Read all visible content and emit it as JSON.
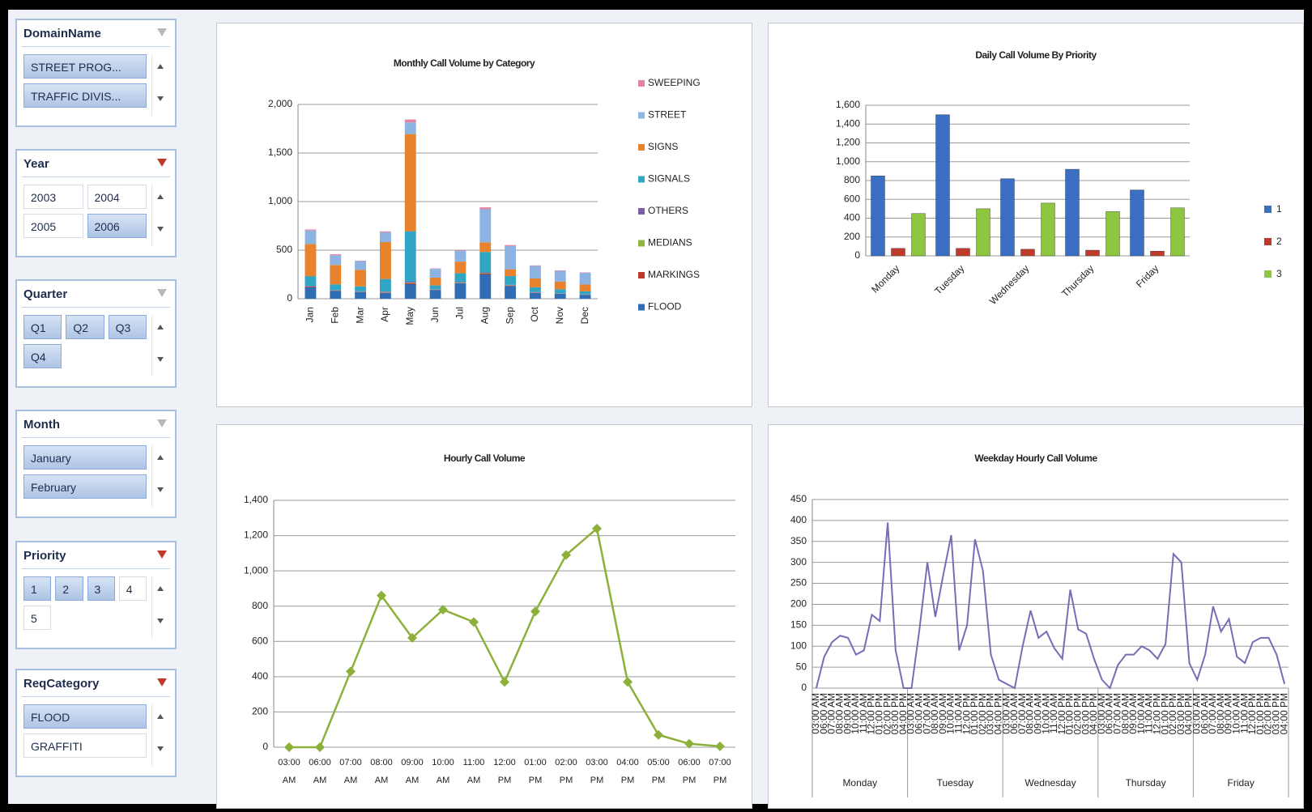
{
  "slicers": [
    {
      "title": "DomainName",
      "filtered": false,
      "items": [
        {
          "label": "STREET PROG...",
          "selected": true
        },
        {
          "label": "TRAFFIC DIVIS...",
          "selected": true
        }
      ]
    },
    {
      "title": "Year",
      "filtered": true,
      "items": [
        {
          "label": "2003",
          "selected": false
        },
        {
          "label": "2004",
          "selected": false
        },
        {
          "label": "2005",
          "selected": false
        },
        {
          "label": "2006",
          "selected": true
        }
      ]
    },
    {
      "title": "Quarter",
      "filtered": false,
      "items": [
        {
          "label": "Q1",
          "selected": true
        },
        {
          "label": "Q2",
          "selected": true
        },
        {
          "label": "Q3",
          "selected": true
        },
        {
          "label": "Q4",
          "selected": true
        }
      ]
    },
    {
      "title": "Month",
      "filtered": false,
      "items": [
        {
          "label": "January",
          "selected": true
        },
        {
          "label": "February",
          "selected": true
        }
      ]
    },
    {
      "title": "Priority",
      "filtered": true,
      "items": [
        {
          "label": "1",
          "selected": true
        },
        {
          "label": "2",
          "selected": true
        },
        {
          "label": "3",
          "selected": true
        },
        {
          "label": "4",
          "selected": false
        },
        {
          "label": "5",
          "selected": false
        }
      ]
    },
    {
      "title": "ReqCategory",
      "filtered": true,
      "items": [
        {
          "label": "FLOOD",
          "selected": true
        },
        {
          "label": "GRAFFITI",
          "selected": false
        }
      ]
    }
  ],
  "chart_data": [
    {
      "type": "stacked_bar",
      "title": "Monthly Call Volume by Category",
      "categories": [
        "Jan",
        "Feb",
        "Mar",
        "Apr",
        "May",
        "Jun",
        "Jul",
        "Aug",
        "Sep",
        "Oct",
        "Nov",
        "Dec"
      ],
      "series": [
        {
          "name": "SWEEPING",
          "color": "#e583a6",
          "values": [
            10,
            10,
            5,
            10,
            30,
            5,
            5,
            20,
            10,
            5,
            5,
            5
          ]
        },
        {
          "name": "STREET",
          "color": "#8db3e2",
          "values": [
            140,
            100,
            90,
            100,
            120,
            90,
            110,
            340,
            240,
            130,
            110,
            120
          ]
        },
        {
          "name": "SIGNS",
          "color": "#e8822c",
          "values": [
            330,
            200,
            170,
            380,
            1000,
            80,
            120,
            100,
            70,
            90,
            80,
            70
          ]
        },
        {
          "name": "SIGNALS",
          "color": "#31a6c4",
          "values": [
            100,
            60,
            50,
            130,
            520,
            40,
            90,
            210,
            90,
            50,
            40,
            30
          ]
        },
        {
          "name": "OTHERS",
          "color": "#7a5ea8",
          "values": [
            5,
            3,
            3,
            5,
            10,
            3,
            5,
            8,
            5,
            3,
            3,
            2
          ]
        },
        {
          "name": "MEDIANS",
          "color": "#8fb440",
          "values": [
            3,
            2,
            2,
            3,
            5,
            2,
            3,
            5,
            3,
            2,
            2,
            2
          ]
        },
        {
          "name": "MARKINGS",
          "color": "#c0392b",
          "values": [
            5,
            3,
            2,
            5,
            10,
            2,
            4,
            8,
            5,
            3,
            2,
            2
          ]
        },
        {
          "name": "FLOOD",
          "color": "#2f6db5",
          "values": [
            120,
            80,
            70,
            60,
            150,
            90,
            160,
            250,
            130,
            60,
            50,
            40
          ]
        }
      ],
      "ylim": [
        0,
        2000
      ],
      "yticks": [
        0,
        500,
        {
          "value": 1000,
          "label": "1,000"
        },
        {
          "value": 1500,
          "label": "1,500"
        },
        {
          "value": 2000,
          "label": "2,000"
        }
      ],
      "grid": true,
      "legend": "right"
    },
    {
      "type": "grouped_bar",
      "title": "Daily Call Volume By Priority",
      "categories": [
        "Monday",
        "Tuesday",
        "Wednesday",
        "Thursday",
        "Friday"
      ],
      "series": [
        {
          "name": "1",
          "color": "#3a6fc4",
          "values": [
            850,
            1500,
            820,
            920,
            700
          ]
        },
        {
          "name": "2",
          "color": "#c0392b",
          "values": [
            80,
            80,
            70,
            60,
            50
          ]
        },
        {
          "name": "3",
          "color": "#8dc63f",
          "values": [
            450,
            500,
            560,
            470,
            510
          ]
        }
      ],
      "ylim": [
        0,
        1600
      ],
      "yticks": [
        0,
        200,
        400,
        600,
        800,
        {
          "value": 1000,
          "label": "1,000"
        },
        {
          "value": 1200,
          "label": "1,200"
        },
        {
          "value": 1400,
          "label": "1,400"
        },
        {
          "value": 1600,
          "label": "1,600"
        }
      ],
      "grid": true,
      "legend": "right"
    },
    {
      "type": "line",
      "title": "Hourly Call Volume",
      "categories": [
        "03:00 AM",
        "06:00 AM",
        "07:00 AM",
        "08:00 AM",
        "09:00 AM",
        "10:00 AM",
        "11:00 AM",
        "12:00 PM",
        "01:00 PM",
        "02:00 PM",
        "03:00 PM",
        "04:00 PM",
        "05:00 PM",
        "06:00 PM",
        "07:00 PM"
      ],
      "values": [
        0,
        0,
        430,
        860,
        620,
        780,
        710,
        370,
        770,
        1090,
        1240,
        370,
        70,
        20,
        5
      ],
      "color": "#8db03a",
      "ylim": [
        0,
        1400
      ],
      "yticks": [
        0,
        200,
        400,
        600,
        800,
        {
          "value": 1000,
          "label": "1,000"
        },
        {
          "value": 1200,
          "label": "1,200"
        },
        {
          "value": 1400,
          "label": "1,400"
        }
      ],
      "grid": true
    },
    {
      "type": "grouped_line",
      "title": "Weekday Hourly Call Volume",
      "groups": [
        {
          "label": "Monday",
          "categories": [
            "03:00 AM",
            "06:00 AM",
            "07:00 AM",
            "08:00 AM",
            "09:00 AM",
            "10:00 AM",
            "11:00 AM",
            "12:00 PM",
            "01:00 PM",
            "02:00 PM",
            "03:00 PM",
            "04:00 PM"
          ],
          "values": [
            0,
            75,
            110,
            125,
            120,
            80,
            90,
            175,
            160,
            395,
            90,
            0
          ]
        },
        {
          "label": "Tuesday",
          "categories": [
            "03:00 AM",
            "06:00 AM",
            "07:00 AM",
            "08:00 AM",
            "09:00 AM",
            "10:00 AM",
            "11:00 AM",
            "12:00 PM",
            "01:00 PM",
            "02:00 PM",
            "03:00 PM",
            "04:00 PM"
          ],
          "values": [
            0,
            140,
            300,
            170,
            270,
            365,
            90,
            150,
            355,
            280,
            80,
            20
          ]
        },
        {
          "label": "Wednesday",
          "categories": [
            "03:00 AM",
            "06:00 AM",
            "07:00 AM",
            "08:00 AM",
            "09:00 AM",
            "10:00 AM",
            "11:00 AM",
            "12:00 PM",
            "01:00 PM",
            "02:00 PM",
            "03:00 PM",
            "04:00 PM"
          ],
          "values": [
            10,
            0,
            100,
            185,
            120,
            135,
            95,
            70,
            235,
            140,
            130,
            70
          ]
        },
        {
          "label": "Thursday",
          "categories": [
            "03:00 AM",
            "06:00 AM",
            "07:00 AM",
            "08:00 AM",
            "09:00 AM",
            "10:00 AM",
            "11:00 AM",
            "12:00 PM",
            "01:00 PM",
            "02:00 PM",
            "03:00 PM",
            "04:00 PM"
          ],
          "values": [
            20,
            0,
            55,
            80,
            80,
            100,
            90,
            70,
            105,
            320,
            300,
            60
          ]
        },
        {
          "label": "Friday",
          "categories": [
            "03:00 AM",
            "06:00 AM",
            "07:00 AM",
            "08:00 AM",
            "09:00 AM",
            "10:00 AM",
            "11:00 AM",
            "12:00 PM",
            "01:00 PM",
            "02:00 PM",
            "03:00 PM",
            "04:00 PM"
          ],
          "values": [
            20,
            80,
            195,
            135,
            165,
            75,
            60,
            110,
            120,
            120,
            80,
            10
          ]
        }
      ],
      "color": "#7b6bb5",
      "ylim": [
        0,
        450
      ],
      "yticks": [
        0,
        50,
        100,
        150,
        200,
        250,
        300,
        350,
        400,
        450
      ],
      "grid": true
    }
  ]
}
